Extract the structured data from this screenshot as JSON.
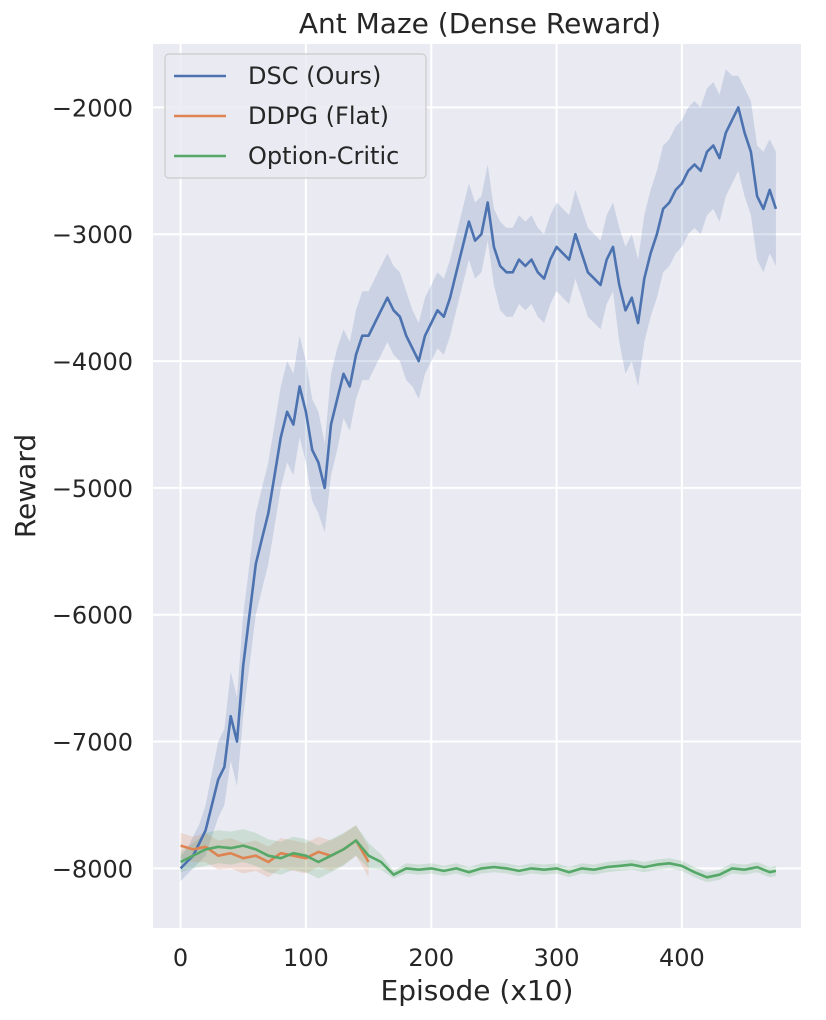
{
  "chart_data": {
    "type": "line",
    "title": "Ant Maze (Dense Reward)",
    "xlabel": "Episode (x10)",
    "ylabel": "Reward",
    "xlim": [
      -22,
      495
    ],
    "ylim": [
      -8470,
      -1500
    ],
    "xticks": [
      0,
      100,
      200,
      300,
      400
    ],
    "yticks": [
      -2000,
      -3000,
      -4000,
      -5000,
      -6000,
      -7000,
      -8000
    ],
    "xtick_labels": [
      "0",
      "100",
      "200",
      "300",
      "400"
    ],
    "ytick_labels": [
      "−2000",
      "−3000",
      "−4000",
      "−5000",
      "−6000",
      "−7000",
      "−8000"
    ],
    "grid": true,
    "legend_position": "top-left",
    "background": "#eaeaf2",
    "series": [
      {
        "name": "DSC (Ours)",
        "color": "#4c72b0",
        "x": [
          0,
          5,
          10,
          15,
          20,
          25,
          30,
          35,
          40,
          45,
          50,
          55,
          60,
          65,
          70,
          75,
          80,
          85,
          90,
          95,
          100,
          105,
          110,
          115,
          120,
          125,
          130,
          135,
          140,
          145,
          150,
          155,
          160,
          165,
          170,
          175,
          180,
          185,
          190,
          195,
          200,
          205,
          210,
          215,
          220,
          225,
          230,
          235,
          240,
          245,
          250,
          255,
          260,
          265,
          270,
          275,
          280,
          285,
          290,
          295,
          300,
          305,
          310,
          315,
          320,
          325,
          330,
          335,
          340,
          345,
          350,
          355,
          360,
          365,
          370,
          375,
          380,
          385,
          390,
          395,
          400,
          405,
          410,
          415,
          420,
          425,
          430,
          435,
          440,
          445,
          450,
          455,
          460,
          465,
          470,
          475
        ],
        "y": [
          -8000,
          -7950,
          -7900,
          -7800,
          -7700,
          -7500,
          -7300,
          -7200,
          -6800,
          -7000,
          -6400,
          -6000,
          -5600,
          -5400,
          -5200,
          -4900,
          -4600,
          -4400,
          -4500,
          -4200,
          -4400,
          -4700,
          -4800,
          -5000,
          -4500,
          -4300,
          -4100,
          -4200,
          -3950,
          -3800,
          -3800,
          -3700,
          -3600,
          -3500,
          -3600,
          -3650,
          -3800,
          -3900,
          -4000,
          -3800,
          -3700,
          -3600,
          -3650,
          -3500,
          -3300,
          -3100,
          -2900,
          -3050,
          -3000,
          -2750,
          -3100,
          -3250,
          -3300,
          -3300,
          -3200,
          -3250,
          -3200,
          -3300,
          -3350,
          -3200,
          -3100,
          -3150,
          -3200,
          -3000,
          -3150,
          -3300,
          -3350,
          -3400,
          -3200,
          -3100,
          -3400,
          -3600,
          -3500,
          -3700,
          -3350,
          -3150,
          -3000,
          -2800,
          -2750,
          -2650,
          -2600,
          -2500,
          -2450,
          -2500,
          -2350,
          -2300,
          -2400,
          -2200,
          -2100,
          -2000,
          -2200,
          -2350,
          -2700,
          -2800,
          -2650,
          -2800
        ],
        "band": [
          [
            -8100,
            -7900
          ],
          [
            -8050,
            -7850
          ],
          [
            -8000,
            -7750
          ],
          [
            -7950,
            -7650
          ],
          [
            -7900,
            -7500
          ],
          [
            -7750,
            -7250
          ],
          [
            -7600,
            -7000
          ],
          [
            -7500,
            -6900
          ],
          [
            -7150,
            -6450
          ],
          [
            -7350,
            -6650
          ],
          [
            -6800,
            -6000
          ],
          [
            -6400,
            -5600
          ],
          [
            -6000,
            -5200
          ],
          [
            -5800,
            -5000
          ],
          [
            -5600,
            -4800
          ],
          [
            -5300,
            -4500
          ],
          [
            -5000,
            -4200
          ],
          [
            -4800,
            -4000
          ],
          [
            -4900,
            -4100
          ],
          [
            -4600,
            -3800
          ],
          [
            -4800,
            -4000
          ],
          [
            -5100,
            -4300
          ],
          [
            -5200,
            -4400
          ],
          [
            -5350,
            -4650
          ],
          [
            -4900,
            -4100
          ],
          [
            -4700,
            -3900
          ],
          [
            -4450,
            -3750
          ],
          [
            -4550,
            -3850
          ],
          [
            -4300,
            -3600
          ],
          [
            -4150,
            -3450
          ],
          [
            -4150,
            -3450
          ],
          [
            -4050,
            -3350
          ],
          [
            -3950,
            -3250
          ],
          [
            -3850,
            -3150
          ],
          [
            -3950,
            -3250
          ],
          [
            -4000,
            -3300
          ],
          [
            -4150,
            -3450
          ],
          [
            -4200,
            -3600
          ],
          [
            -4300,
            -3700
          ],
          [
            -4100,
            -3500
          ],
          [
            -4000,
            -3400
          ],
          [
            -3900,
            -3300
          ],
          [
            -3950,
            -3350
          ],
          [
            -3800,
            -3200
          ],
          [
            -3600,
            -3000
          ],
          [
            -3400,
            -2800
          ],
          [
            -3200,
            -2600
          ],
          [
            -3350,
            -2750
          ],
          [
            -3300,
            -2700
          ],
          [
            -3050,
            -2450
          ],
          [
            -3400,
            -2800
          ],
          [
            -3600,
            -2900
          ],
          [
            -3650,
            -2950
          ],
          [
            -3650,
            -2950
          ],
          [
            -3550,
            -2850
          ],
          [
            -3600,
            -2900
          ],
          [
            -3550,
            -2850
          ],
          [
            -3650,
            -2950
          ],
          [
            -3700,
            -3000
          ],
          [
            -3550,
            -2850
          ],
          [
            -3450,
            -2750
          ],
          [
            -3500,
            -2800
          ],
          [
            -3550,
            -2850
          ],
          [
            -3350,
            -2650
          ],
          [
            -3500,
            -2800
          ],
          [
            -3650,
            -2950
          ],
          [
            -3700,
            -3000
          ],
          [
            -3750,
            -3050
          ],
          [
            -3550,
            -2850
          ],
          [
            -3450,
            -2750
          ],
          [
            -3850,
            -2950
          ],
          [
            -4100,
            -3100
          ],
          [
            -4000,
            -3000
          ],
          [
            -4200,
            -3200
          ],
          [
            -3850,
            -2850
          ],
          [
            -3650,
            -2650
          ],
          [
            -3500,
            -2500
          ],
          [
            -3300,
            -2300
          ],
          [
            -3250,
            -2250
          ],
          [
            -3150,
            -2150
          ],
          [
            -3100,
            -2100
          ],
          [
            -3000,
            -2000
          ],
          [
            -2950,
            -1950
          ],
          [
            -3000,
            -2000
          ],
          [
            -2850,
            -1850
          ],
          [
            -2800,
            -1800
          ],
          [
            -2900,
            -1900
          ],
          [
            -2700,
            -1700
          ],
          [
            -2600,
            -1750
          ],
          [
            -2500,
            -1750
          ],
          [
            -2700,
            -1850
          ],
          [
            -2850,
            -1950
          ],
          [
            -3200,
            -2300
          ],
          [
            -3300,
            -2350
          ],
          [
            -3150,
            -2250
          ],
          [
            -3250,
            -2350
          ]
        ]
      },
      {
        "name": "DDPG (Flat)",
        "color": "#dd8452",
        "x": [
          0,
          10,
          20,
          30,
          40,
          50,
          60,
          70,
          80,
          90,
          100,
          110,
          120,
          130,
          140,
          150
        ],
        "y": [
          -7820,
          -7850,
          -7830,
          -7900,
          -7880,
          -7920,
          -7900,
          -7950,
          -7880,
          -7900,
          -7920,
          -7870,
          -7900,
          -7850,
          -7780,
          -7950
        ],
        "band": [
          [
            -7920,
            -7720
          ],
          [
            -7950,
            -7750
          ],
          [
            -7950,
            -7720
          ],
          [
            -8010,
            -7780
          ],
          [
            -8000,
            -7760
          ],
          [
            -8040,
            -7800
          ],
          [
            -8020,
            -7780
          ],
          [
            -8070,
            -7830
          ],
          [
            -8000,
            -7760
          ],
          [
            -8020,
            -7780
          ],
          [
            -8040,
            -7800
          ],
          [
            -7990,
            -7750
          ],
          [
            -8020,
            -7780
          ],
          [
            -7970,
            -7730
          ],
          [
            -7900,
            -7660
          ],
          [
            -8070,
            -7830
          ]
        ]
      },
      {
        "name": "Option-Critic",
        "color": "#55a868",
        "x": [
          0,
          10,
          20,
          30,
          40,
          50,
          60,
          70,
          80,
          90,
          100,
          110,
          120,
          130,
          140,
          150,
          160,
          170,
          180,
          190,
          200,
          210,
          220,
          230,
          240,
          250,
          260,
          270,
          280,
          290,
          300,
          310,
          320,
          330,
          340,
          350,
          360,
          370,
          380,
          390,
          400,
          410,
          420,
          430,
          440,
          450,
          460,
          470,
          475
        ],
        "y": [
          -7950,
          -7900,
          -7850,
          -7830,
          -7840,
          -7820,
          -7850,
          -7900,
          -7920,
          -7880,
          -7900,
          -7950,
          -7900,
          -7850,
          -7780,
          -7900,
          -7950,
          -8050,
          -8000,
          -8010,
          -8000,
          -8020,
          -8000,
          -8030,
          -8000,
          -7990,
          -8000,
          -8020,
          -8000,
          -8010,
          -8000,
          -8030,
          -8000,
          -8010,
          -7990,
          -7980,
          -7970,
          -7990,
          -7970,
          -7960,
          -7980,
          -8030,
          -8070,
          -8050,
          -8000,
          -8010,
          -7990,
          -8030,
          -8020
        ],
        "band": [
          [
            -8030,
            -7870
          ],
          [
            -8000,
            -7800
          ],
          [
            -7980,
            -7720
          ],
          [
            -7960,
            -7700
          ],
          [
            -7970,
            -7710
          ],
          [
            -7950,
            -7690
          ],
          [
            -7980,
            -7720
          ],
          [
            -8030,
            -7770
          ],
          [
            -8050,
            -7790
          ],
          [
            -8010,
            -7750
          ],
          [
            -8030,
            -7770
          ],
          [
            -8080,
            -7820
          ],
          [
            -8030,
            -7770
          ],
          [
            -7980,
            -7720
          ],
          [
            -7900,
            -7660
          ],
          [
            -8000,
            -7800
          ],
          [
            -8010,
            -7890
          ],
          [
            -8080,
            -8020
          ],
          [
            -8040,
            -7960
          ],
          [
            -8050,
            -7970
          ],
          [
            -8040,
            -7960
          ],
          [
            -8060,
            -7980
          ],
          [
            -8040,
            -7960
          ],
          [
            -8070,
            -7990
          ],
          [
            -8040,
            -7960
          ],
          [
            -8030,
            -7950
          ],
          [
            -8040,
            -7960
          ],
          [
            -8060,
            -7980
          ],
          [
            -8040,
            -7960
          ],
          [
            -8050,
            -7970
          ],
          [
            -8040,
            -7960
          ],
          [
            -8070,
            -7990
          ],
          [
            -8040,
            -7960
          ],
          [
            -8050,
            -7970
          ],
          [
            -8030,
            -7950
          ],
          [
            -8020,
            -7940
          ],
          [
            -8010,
            -7930
          ],
          [
            -8030,
            -7950
          ],
          [
            -8010,
            -7930
          ],
          [
            -8000,
            -7920
          ],
          [
            -8020,
            -7940
          ],
          [
            -8070,
            -7990
          ],
          [
            -8110,
            -8030
          ],
          [
            -8090,
            -8010
          ],
          [
            -8040,
            -7960
          ],
          [
            -8050,
            -7970
          ],
          [
            -8030,
            -7950
          ],
          [
            -8070,
            -7990
          ],
          [
            -8060,
            -7980
          ]
        ]
      }
    ]
  }
}
